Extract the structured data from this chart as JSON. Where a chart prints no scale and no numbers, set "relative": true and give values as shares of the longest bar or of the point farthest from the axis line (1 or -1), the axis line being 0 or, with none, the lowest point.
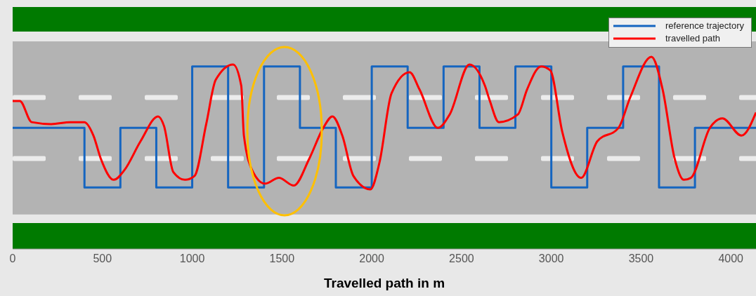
{
  "chart_data": {
    "type": "line",
    "xlabel": "Travelled path in m",
    "relative": true,
    "xlim": [
      0,
      4140
    ],
    "xticks": [
      0,
      500,
      1000,
      1500,
      2000,
      2500,
      3000,
      3500,
      4000
    ],
    "legend": "top right",
    "bands": [
      {
        "axis": "y",
        "from": 0.18,
        "to": 1.08,
        "color": "#b3b3b3"
      }
    ],
    "series": [
      {
        "name": "reference trajectory",
        "type": "step",
        "color": "#1565c0",
        "x": [
          0,
          400,
          600,
          800,
          1000,
          1200,
          1400,
          1600,
          1800,
          2000,
          2200,
          2400,
          2600,
          2800,
          3000,
          3200,
          3400,
          3600,
          3800,
          4140
        ],
        "values": [
          0.63,
          0.32,
          0.63,
          0.32,
          0.95,
          0.32,
          0.95,
          0.63,
          0.32,
          0.95,
          0.63,
          0.95,
          0.63,
          0.95,
          0.32,
          0.63,
          0.95,
          0.32,
          0.63,
          0.63
        ]
      },
      {
        "name": "travelled path",
        "type": "line",
        "color": "#ff0000",
        "x": [
          0,
          40,
          106,
          215,
          321,
          399,
          450,
          491,
          563,
          622,
          712,
          810,
          843,
          895,
          960,
          1013,
          1078,
          1131,
          1228,
          1273,
          1288,
          1339,
          1405,
          1483,
          1566,
          1652,
          1730,
          1781,
          1836,
          1898,
          1992,
          2043,
          2110,
          2211,
          2266,
          2368,
          2434,
          2544,
          2630,
          2658,
          2708,
          2814,
          2865,
          2943,
          2994,
          3061,
          3166,
          3256,
          3374,
          3440,
          3558,
          3620,
          3687,
          3738,
          3777,
          3883,
          3953,
          4059,
          4140
        ],
        "values": [
          0.77,
          0.77,
          0.66,
          0.65,
          0.66,
          0.66,
          0.59,
          0.47,
          0.36,
          0.41,
          0.56,
          0.69,
          0.64,
          0.4,
          0.36,
          0.38,
          0.65,
          0.88,
          0.96,
          0.85,
          0.59,
          0.4,
          0.34,
          0.37,
          0.33,
          0.47,
          0.63,
          0.69,
          0.59,
          0.38,
          0.31,
          0.45,
          0.81,
          0.92,
          0.83,
          0.63,
          0.7,
          0.96,
          0.85,
          0.77,
          0.66,
          0.7,
          0.83,
          0.95,
          0.93,
          0.61,
          0.37,
          0.56,
          0.63,
          0.79,
          1,
          0.83,
          0.47,
          0.36,
          0.37,
          0.63,
          0.68,
          0.59,
          0.71
        ]
      }
    ]
  }
}
